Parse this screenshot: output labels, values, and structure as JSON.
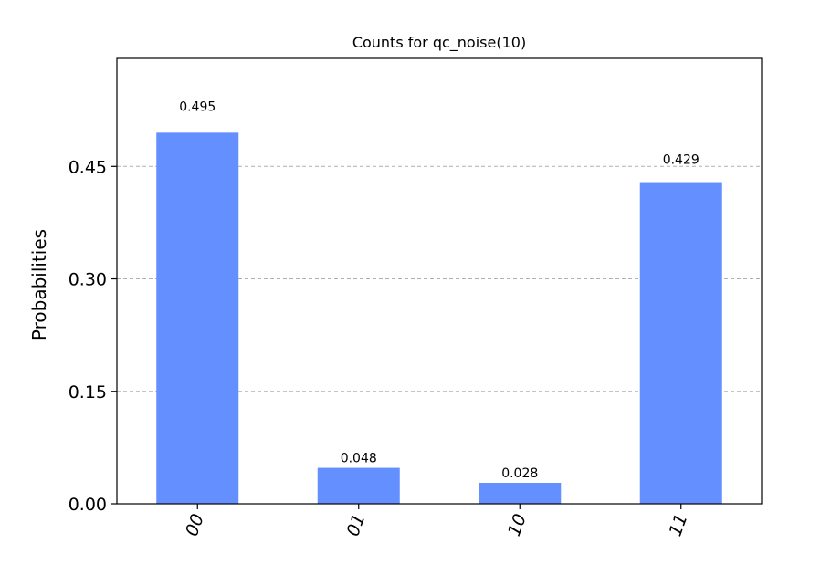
{
  "chart_data": {
    "type": "bar",
    "title": "Counts for qc_noise(10)",
    "xlabel": "",
    "ylabel": "Probabilities",
    "categories": [
      "00",
      "01",
      "10",
      "11"
    ],
    "values": [
      0.495,
      0.048,
      0.028,
      0.429
    ],
    "value_labels": [
      "0.495",
      "0.048",
      "0.028",
      "0.429"
    ],
    "yticks": [
      0.0,
      0.15,
      0.3,
      0.45
    ],
    "ytick_labels": [
      "0.00",
      "0.15",
      "0.30",
      "0.45"
    ],
    "ylim": [
      0,
      0.594
    ],
    "grid": true,
    "bar_color": "#648fff"
  }
}
